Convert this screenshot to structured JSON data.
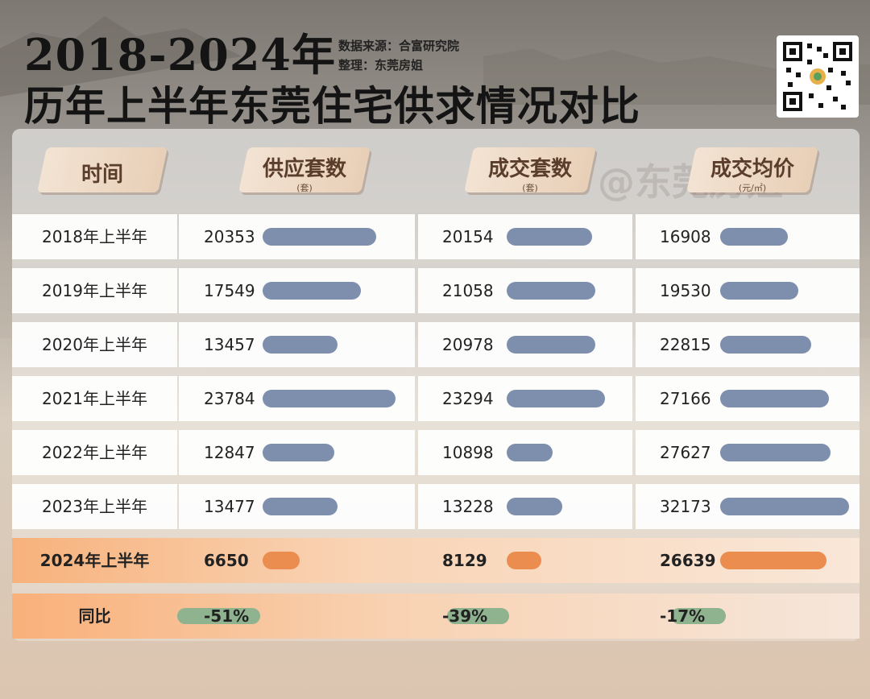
{
  "title_line1": "2018-2024年",
  "title_line2": "历年上半年东莞住宅供求情况对比",
  "source": "数据来源：合富研究院",
  "compiled_by": "整理：东莞房姐",
  "watermark": "@东莞房姐",
  "qr_icon": "qr-code-icon",
  "colors": {
    "bar": "#7e8fae",
    "highlight_bar": "#eb8d4f",
    "yoy_bar": "#8fb28f",
    "highlight_row": "#f6c09a"
  },
  "headers": {
    "time": "时间",
    "supply": "供应套数",
    "supply_unit": "(套)",
    "deals": "成交套数",
    "deals_unit": "(套)",
    "price": "成交均价",
    "price_unit": "(元/㎡)"
  },
  "chart_data": {
    "type": "table",
    "columns": [
      "时间",
      "供应套数",
      "成交套数",
      "成交均价"
    ],
    "rows": [
      {
        "period": "2018年上半年",
        "supply": 20353,
        "deals": 20154,
        "price": 16908
      },
      {
        "period": "2019年上半年",
        "supply": 17549,
        "deals": 21058,
        "price": 19530
      },
      {
        "period": "2020年上半年",
        "supply": 13457,
        "deals": 20978,
        "price": 22815
      },
      {
        "period": "2021年上半年",
        "supply": 23784,
        "deals": 23294,
        "price": 27166
      },
      {
        "period": "2022年上半年",
        "supply": 12847,
        "deals": 10898,
        "price": 27627
      },
      {
        "period": "2023年上半年",
        "supply": 13477,
        "deals": 13228,
        "price": 32173
      },
      {
        "period": "2024年上半年",
        "supply": 6650,
        "deals": 8129,
        "price": 26639
      }
    ],
    "yoy": {
      "label": "同比",
      "supply": "-51%",
      "deals": "-39%",
      "price": "-17%"
    }
  }
}
